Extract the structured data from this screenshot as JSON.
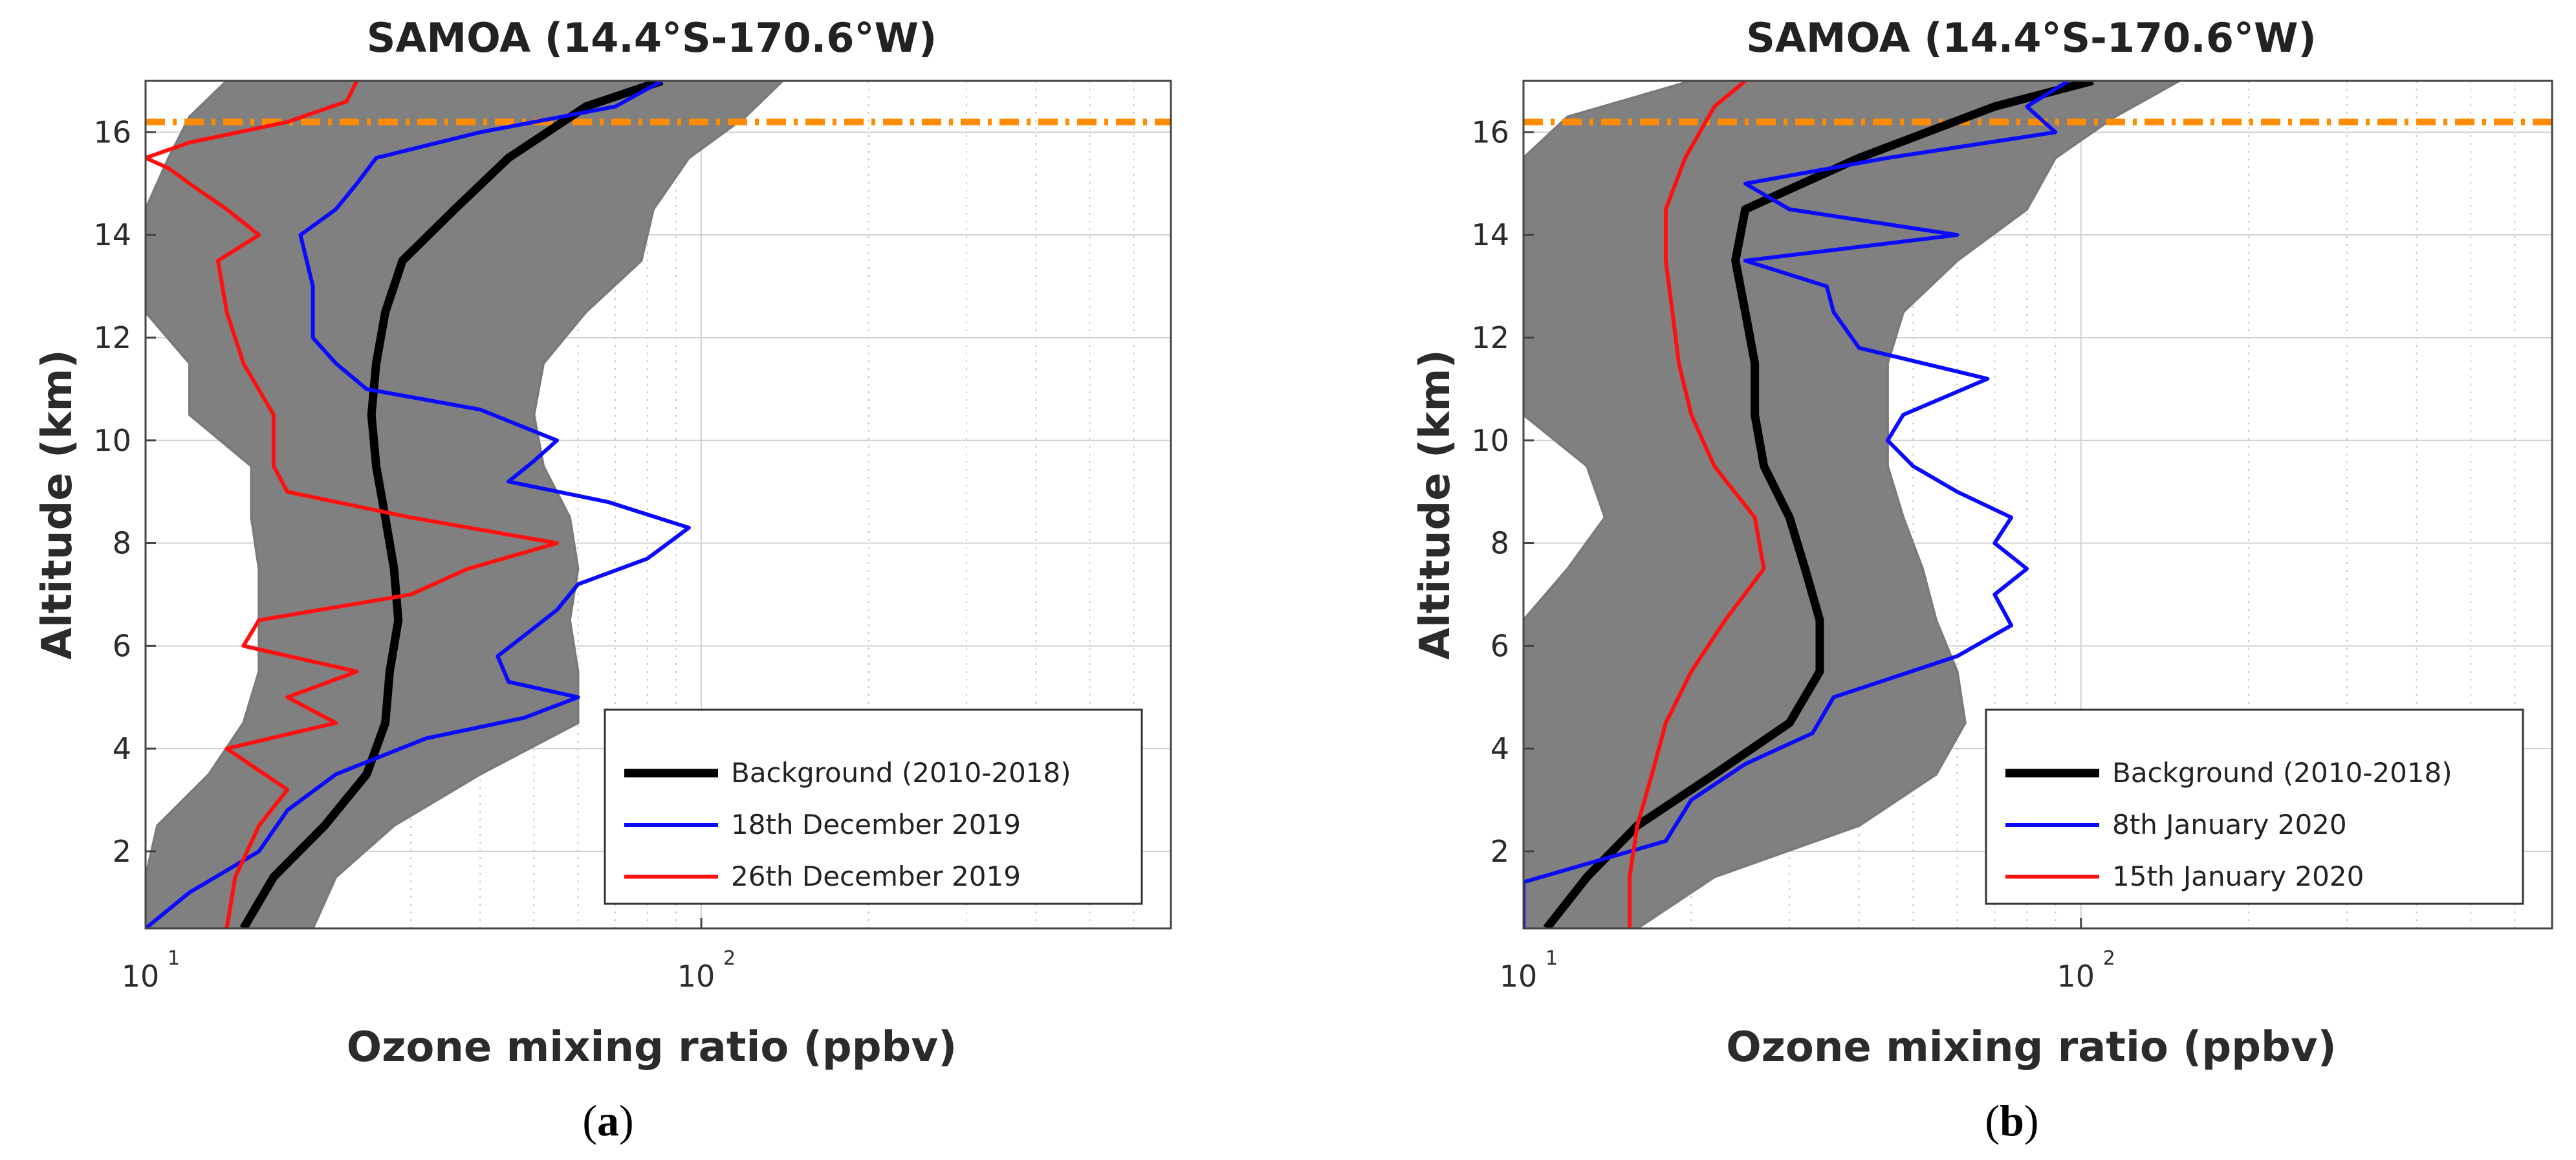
{
  "chart_data": [
    {
      "type": "line",
      "panel_label": "a",
      "title": "SAMOA (14.4°S-170.6°W)",
      "xlabel": "Ozone mixing ratio (ppbv)",
      "ylabel": "Altitude (km)",
      "xscale": "log",
      "xlim": [
        10,
        700
      ],
      "ylim": [
        0.5,
        17
      ],
      "xticks": [
        {
          "base": "10",
          "exp": "1"
        },
        {
          "base": "10",
          "exp": "2"
        }
      ],
      "yticks": [
        2,
        4,
        6,
        8,
        10,
        12,
        14,
        16
      ],
      "tropopause_km": 16.2,
      "legend_position": "bottom-right",
      "legend": [
        "Background (2010-2018)",
        "18th December 2019",
        "26th December 2019"
      ],
      "envelope": {
        "alt": [
          0.5,
          1.5,
          2.5,
          3.5,
          4.5,
          5.5,
          6.5,
          7.5,
          8.5,
          9.5,
          10.5,
          11.5,
          12.5,
          13.5,
          14.5,
          15.5,
          16.3,
          17
        ],
        "min": [
          10,
          10,
          10.5,
          13,
          15,
          16,
          16,
          16,
          15.5,
          15.5,
          12,
          12,
          10,
          10,
          10,
          11,
          12,
          14
        ],
        "max": [
          20,
          22,
          28,
          40,
          60,
          60,
          58,
          60,
          58,
          52,
          50,
          52,
          62,
          78,
          82,
          95,
          120,
          140
        ]
      },
      "series": [
        {
          "name": "Background (2010-2018)",
          "color": "#000000",
          "alt": [
            0.5,
            1.5,
            2.5,
            3.5,
            4.5,
            5.5,
            6.5,
            7.5,
            8.5,
            9.5,
            10.5,
            11.5,
            12.5,
            13.5,
            14.5,
            15.5,
            16.5,
            17
          ],
          "ozone": [
            15,
            17,
            21,
            25,
            27,
            27.5,
            28.5,
            28,
            27,
            26,
            25.5,
            26,
            27,
            29,
            36,
            45,
            62,
            85
          ]
        },
        {
          "name": "18th December 2019",
          "color": "#0a0aff",
          "alt": [
            0.5,
            1.2,
            2,
            2.8,
            3.5,
            4.2,
            4.6,
            5,
            5.3,
            5.8,
            6.2,
            6.7,
            7.2,
            7.7,
            8.3,
            8.8,
            9.2,
            9.6,
            10,
            10.6,
            11,
            11.5,
            12,
            13,
            14,
            14.5,
            15,
            15.5,
            16,
            16.5,
            17
          ],
          "ozone": [
            10,
            12,
            16,
            18,
            22,
            32,
            48,
            60,
            45,
            43,
            48,
            55,
            60,
            80,
            95,
            68,
            45,
            50,
            55,
            40,
            25,
            22,
            20,
            20,
            19,
            22,
            24,
            26,
            40,
            70,
            85
          ]
        },
        {
          "name": "26th December 2019",
          "color": "#ff1010",
          "alt": [
            0.5,
            1.5,
            2.5,
            3.2,
            4,
            4.5,
            5,
            5.5,
            6,
            6.5,
            7,
            7.5,
            8,
            8.5,
            9,
            9.5,
            10.5,
            11.5,
            12.5,
            13.5,
            14,
            14.5,
            15,
            15.3,
            15.5,
            15.8,
            16.2,
            16.6,
            17
          ],
          "ozone": [
            14,
            14.5,
            16,
            18,
            14,
            22,
            18,
            24,
            15,
            16,
            30,
            38,
            55,
            30,
            18,
            17,
            17,
            15,
            14,
            13.5,
            16,
            14,
            12,
            11,
            10,
            12,
            18,
            23,
            24
          ]
        }
      ]
    },
    {
      "type": "line",
      "panel_label": "b",
      "title": "SAMOA (14.4°S-170.6°W)",
      "xlabel": "Ozone mixing ratio (ppbv)",
      "ylabel": "Altitude (km)",
      "xscale": "log",
      "xlim": [
        10,
        700
      ],
      "ylim": [
        0.5,
        17
      ],
      "xticks": [
        {
          "base": "10",
          "exp": "1"
        },
        {
          "base": "10",
          "exp": "2"
        }
      ],
      "yticks": [
        2,
        4,
        6,
        8,
        10,
        12,
        14,
        16
      ],
      "tropopause_km": 16.2,
      "legend_position": "bottom-right",
      "legend": [
        "Background (2010-2018)",
        "8th January 2020",
        "15th January 2020"
      ],
      "envelope": {
        "alt": [
          0.5,
          1.5,
          2.5,
          3.5,
          4.5,
          5.5,
          6.5,
          7.5,
          8.5,
          9.5,
          10.5,
          11.5,
          12.5,
          13.5,
          14.5,
          15.5,
          16.3,
          17
        ],
        "min": [
          10,
          10,
          10,
          10,
          10,
          10,
          10,
          12,
          14,
          13,
          10,
          10,
          10,
          10,
          10,
          10,
          12,
          20
        ],
        "max": [
          16,
          22,
          40,
          55,
          62,
          60,
          55,
          52,
          48,
          45,
          45,
          45,
          48,
          60,
          80,
          90,
          115,
          150
        ]
      },
      "series": [
        {
          "name": "Background (2010-2018)",
          "color": "#000000",
          "alt": [
            0.5,
            1.5,
            2.5,
            3.5,
            4.5,
            5.5,
            6.5,
            7.5,
            8.5,
            9.5,
            10.5,
            11.5,
            12.5,
            13.5,
            14.5,
            15.5,
            16.5,
            17
          ],
          "ozone": [
            11,
            13,
            16,
            22,
            30,
            34,
            34,
            32,
            30,
            27,
            26,
            26,
            25,
            24,
            25,
            40,
            70,
            105
          ]
        },
        {
          "name": "8th January 2020",
          "color": "#0a0aff",
          "alt": [
            0.5,
            1.4,
            2.2,
            3,
            3.7,
            4.3,
            5,
            5.8,
            6.4,
            7,
            7.5,
            8,
            8.5,
            9,
            9.5,
            10,
            10.5,
            11.2,
            11.8,
            12.5,
            13,
            13.5,
            14,
            14.5,
            15,
            15.5,
            16,
            16.5,
            17
          ],
          "ozone": [
            10,
            10,
            18,
            20,
            25,
            33,
            36,
            60,
            75,
            70,
            80,
            70,
            75,
            60,
            50,
            45,
            48,
            68,
            40,
            36,
            35,
            25,
            60,
            30,
            25,
            45,
            90,
            80,
            95
          ]
        },
        {
          "name": "15th January 2020",
          "color": "#ff1010",
          "alt": [
            0.5,
            1.5,
            2.5,
            3.5,
            4.5,
            5.5,
            6.5,
            7.5,
            8.5,
            9.5,
            10.5,
            11.5,
            12.5,
            13.5,
            14.5,
            15.5,
            16.5,
            17
          ],
          "ozone": [
            15.5,
            15.5,
            16,
            17,
            18,
            20,
            23,
            27,
            26,
            22,
            20,
            19,
            18.5,
            18,
            18,
            19.5,
            22,
            25
          ]
        }
      ]
    }
  ]
}
